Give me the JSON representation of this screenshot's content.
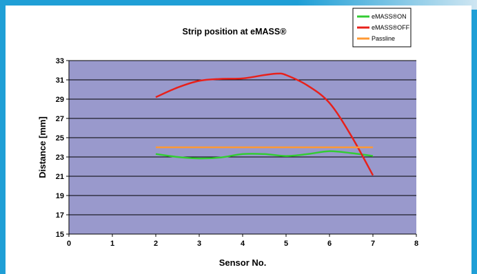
{
  "chart_data": {
    "type": "line",
    "title": "Strip position at eMASS®",
    "xlabel": "Sensor No.",
    "ylabel": "Distance [mm]",
    "xlim": [
      0,
      8
    ],
    "ylim": [
      15,
      33
    ],
    "xticks": [
      0,
      1,
      2,
      3,
      4,
      5,
      6,
      7,
      8
    ],
    "yticks": [
      15,
      17,
      19,
      21,
      23,
      25,
      27,
      29,
      31,
      33
    ],
    "grid": "horizontal",
    "legend_position": "top-right",
    "plot_background": "#9999cc",
    "series": [
      {
        "name": "eMASS®ON",
        "color": "#33cc33",
        "x": [
          2,
          2.5,
          3,
          3.5,
          4,
          4.5,
          5,
          5.5,
          6,
          6.5,
          7
        ],
        "y": [
          23.3,
          23.0,
          22.85,
          22.95,
          23.3,
          23.3,
          23.1,
          23.3,
          23.6,
          23.4,
          23.1
        ]
      },
      {
        "name": "eMASS®OFF",
        "color": "#e8201a",
        "x": [
          2,
          2.5,
          3,
          3.5,
          4,
          4.5,
          4.8,
          5,
          5.5,
          6,
          6.5,
          7
        ],
        "y": [
          29.2,
          30.2,
          30.9,
          31.1,
          31.15,
          31.5,
          31.65,
          31.5,
          30.4,
          28.6,
          25.2,
          21.1
        ]
      },
      {
        "name": "Passline",
        "color": "#ff9933",
        "x": [
          2,
          7
        ],
        "y": [
          24,
          24
        ]
      }
    ]
  }
}
